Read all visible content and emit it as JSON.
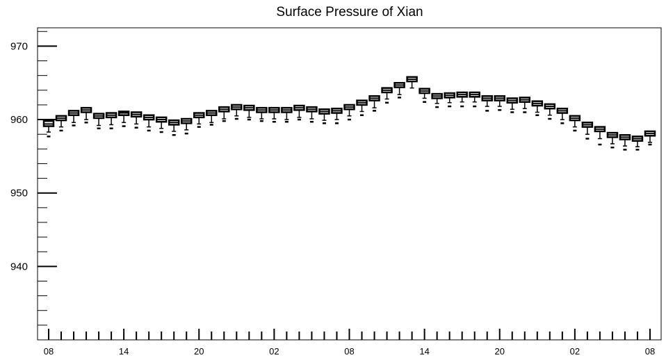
{
  "chart_data": {
    "type": "boxplot",
    "title": "Surface Pressure of Xian",
    "xlabel": "",
    "ylabel": "",
    "ylim": [
      930,
      972.5
    ],
    "yticks": [
      940,
      950,
      960,
      970
    ],
    "xtick_labels": [
      "08",
      "14",
      "20",
      "02",
      "08",
      "14",
      "20",
      "02",
      "08"
    ],
    "xtick_label_indices": [
      0,
      6,
      12,
      18,
      24,
      30,
      36,
      42,
      48
    ],
    "grid": false,
    "legend": "none",
    "series": [
      {
        "medians": [
          959.4,
          960.2,
          960.9,
          961.3,
          960.5,
          960.6,
          960.9,
          960.7,
          960.3,
          960.0,
          959.6,
          959.8,
          960.6,
          960.9,
          961.4,
          961.7,
          961.6,
          961.3,
          961.3,
          961.3,
          961.6,
          961.4,
          961.1,
          961.2,
          961.7,
          962.3,
          962.9,
          964.0,
          964.7,
          965.5,
          963.9,
          963.2,
          963.3,
          963.4,
          963.4,
          962.9,
          962.9,
          962.6,
          962.7,
          962.2,
          961.8,
          961.2,
          960.2,
          959.3,
          958.7,
          957.9,
          957.6,
          957.4,
          958.1
        ],
        "q1": [
          959.1,
          959.9,
          960.6,
          961.0,
          960.2,
          960.3,
          960.6,
          960.4,
          960.0,
          959.7,
          959.3,
          959.5,
          960.3,
          960.6,
          961.1,
          961.4,
          961.3,
          961.0,
          961.0,
          961.0,
          961.3,
          961.1,
          960.8,
          960.9,
          961.4,
          962.0,
          962.6,
          963.7,
          964.4,
          965.2,
          963.6,
          962.9,
          963.0,
          963.1,
          963.1,
          962.6,
          962.6,
          962.3,
          962.4,
          961.9,
          961.5,
          960.9,
          959.9,
          959.0,
          958.4,
          957.6,
          957.3,
          957.1,
          957.8
        ],
        "q3": [
          959.8,
          960.5,
          961.2,
          961.6,
          960.8,
          960.9,
          961.1,
          961.0,
          960.6,
          960.3,
          959.9,
          960.1,
          960.9,
          961.2,
          961.7,
          962.0,
          961.9,
          961.6,
          961.6,
          961.6,
          961.9,
          961.7,
          961.4,
          961.5,
          962.0,
          962.6,
          963.2,
          964.3,
          965.0,
          965.8,
          964.2,
          963.5,
          963.6,
          963.7,
          963.7,
          963.2,
          963.2,
          962.9,
          963.0,
          962.5,
          962.1,
          961.5,
          960.5,
          959.6,
          959.0,
          958.2,
          957.9,
          957.7,
          958.4
        ],
        "lower_whisker": [
          958.3,
          959.0,
          959.6,
          960.0,
          959.2,
          959.3,
          959.6,
          959.4,
          959.0,
          958.8,
          958.4,
          958.6,
          959.4,
          959.6,
          960.1,
          960.5,
          960.3,
          960.1,
          960.1,
          960.0,
          960.3,
          960.1,
          959.9,
          960.0,
          960.5,
          961.1,
          961.6,
          962.8,
          963.4,
          964.3,
          962.9,
          962.2,
          962.3,
          962.4,
          962.4,
          961.8,
          961.8,
          961.4,
          961.5,
          961.0,
          960.6,
          960.0,
          959.0,
          958.0,
          957.4,
          956.7,
          956.4,
          956.3,
          956.9
        ],
        "upper_whisker": [
          959.9,
          960.6,
          961.3,
          961.7,
          960.9,
          961.0,
          961.2,
          961.1,
          960.7,
          960.4,
          960.0,
          960.2,
          961.0,
          961.3,
          961.8,
          962.1,
          962.0,
          961.7,
          961.7,
          961.7,
          962.0,
          961.8,
          961.5,
          961.6,
          962.1,
          962.7,
          963.3,
          964.4,
          965.1,
          965.9,
          964.3,
          963.6,
          963.7,
          963.8,
          963.8,
          963.3,
          963.3,
          963.0,
          963.1,
          962.6,
          962.2,
          961.6,
          960.6,
          959.7,
          959.1,
          958.3,
          958.0,
          957.8,
          958.5
        ],
        "outliers": [
          957.7,
          958.5,
          959.2,
          959.6,
          958.8,
          958.8,
          959.1,
          958.9,
          958.5,
          958.3,
          957.9,
          958.1,
          959.0,
          959.3,
          959.8,
          960.1,
          960.0,
          959.8,
          959.7,
          959.7,
          960.0,
          959.7,
          959.5,
          959.5,
          960.0,
          960.6,
          961.2,
          962.3,
          963.0,
          null,
          962.4,
          961.7,
          961.8,
          961.8,
          961.8,
          961.2,
          961.3,
          961.0,
          961.0,
          960.6,
          960.1,
          959.5,
          958.5,
          957.4,
          956.6,
          956.2,
          955.9,
          955.9,
          956.6
        ]
      }
    ],
    "style": {
      "box_color": "#000000",
      "axis_color": "#000000",
      "background": "#ffffff"
    }
  }
}
